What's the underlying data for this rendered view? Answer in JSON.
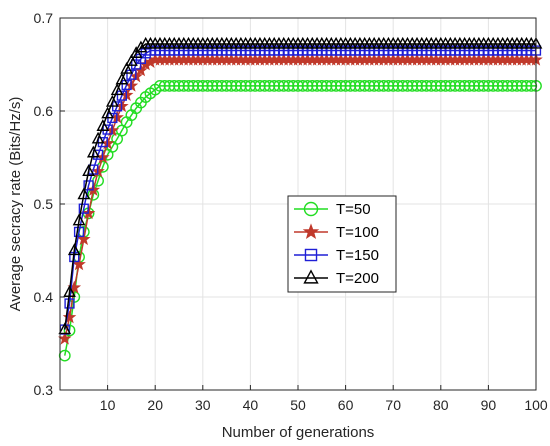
{
  "chart_data": {
    "type": "line",
    "title": "",
    "xlabel": "Number of generations",
    "ylabel": "Average secracy rate (Bits/Hz/s)",
    "xlim": [
      0,
      100
    ],
    "ylim": [
      0.3,
      0.7
    ],
    "xticks": [
      10,
      20,
      30,
      40,
      50,
      60,
      70,
      80,
      90,
      100
    ],
    "yticks": [
      0.3,
      0.4,
      0.5,
      0.6,
      0.7
    ],
    "grid": true,
    "legend_position": "center-right",
    "series": [
      {
        "name": "T=50",
        "color": "#22dd22",
        "marker": "circle",
        "converge_at": 21,
        "knots": [
          [
            1,
            0.337
          ],
          [
            2,
            0.364
          ],
          [
            3,
            0.4
          ],
          [
            4,
            0.443
          ],
          [
            5,
            0.47
          ],
          [
            6,
            0.49
          ],
          [
            7,
            0.51
          ],
          [
            8,
            0.525
          ],
          [
            9,
            0.54
          ],
          [
            10,
            0.553
          ],
          [
            12,
            0.57
          ],
          [
            14,
            0.588
          ],
          [
            16,
            0.603
          ],
          [
            18,
            0.615
          ],
          [
            20,
            0.623
          ],
          [
            21,
            0.627
          ],
          [
            100,
            0.627
          ]
        ]
      },
      {
        "name": "T=100",
        "color": "#c0392b",
        "marker": "star",
        "converge_at": 20,
        "knots": [
          [
            1,
            0.355
          ],
          [
            2,
            0.378
          ],
          [
            3,
            0.41
          ],
          [
            4,
            0.435
          ],
          [
            5,
            0.462
          ],
          [
            6,
            0.49
          ],
          [
            7,
            0.515
          ],
          [
            8,
            0.535
          ],
          [
            10,
            0.565
          ],
          [
            12,
            0.593
          ],
          [
            14,
            0.617
          ],
          [
            16,
            0.637
          ],
          [
            18,
            0.65
          ],
          [
            20,
            0.655
          ],
          [
            100,
            0.655
          ]
        ]
      },
      {
        "name": "T=150",
        "color": "#1f1fd6",
        "marker": "square",
        "converge_at": 19,
        "knots": [
          [
            1,
            0.365
          ],
          [
            2,
            0.393
          ],
          [
            3,
            0.443
          ],
          [
            4,
            0.47
          ],
          [
            5,
            0.495
          ],
          [
            6,
            0.52
          ],
          [
            7,
            0.537
          ],
          [
            8,
            0.553
          ],
          [
            10,
            0.58
          ],
          [
            12,
            0.605
          ],
          [
            14,
            0.628
          ],
          [
            16,
            0.65
          ],
          [
            18,
            0.662
          ],
          [
            19,
            0.665
          ],
          [
            100,
            0.665
          ]
        ]
      },
      {
        "name": "T=200",
        "color": "#000000",
        "marker": "triangle",
        "converge_at": 18,
        "knots": [
          [
            1,
            0.365
          ],
          [
            2,
            0.405
          ],
          [
            3,
            0.45
          ],
          [
            4,
            0.482
          ],
          [
            5,
            0.51
          ],
          [
            6,
            0.535
          ],
          [
            7,
            0.555
          ],
          [
            8,
            0.57
          ],
          [
            10,
            0.597
          ],
          [
            12,
            0.622
          ],
          [
            14,
            0.645
          ],
          [
            16,
            0.662
          ],
          [
            17,
            0.668
          ],
          [
            18,
            0.672
          ],
          [
            100,
            0.672
          ]
        ]
      }
    ]
  }
}
